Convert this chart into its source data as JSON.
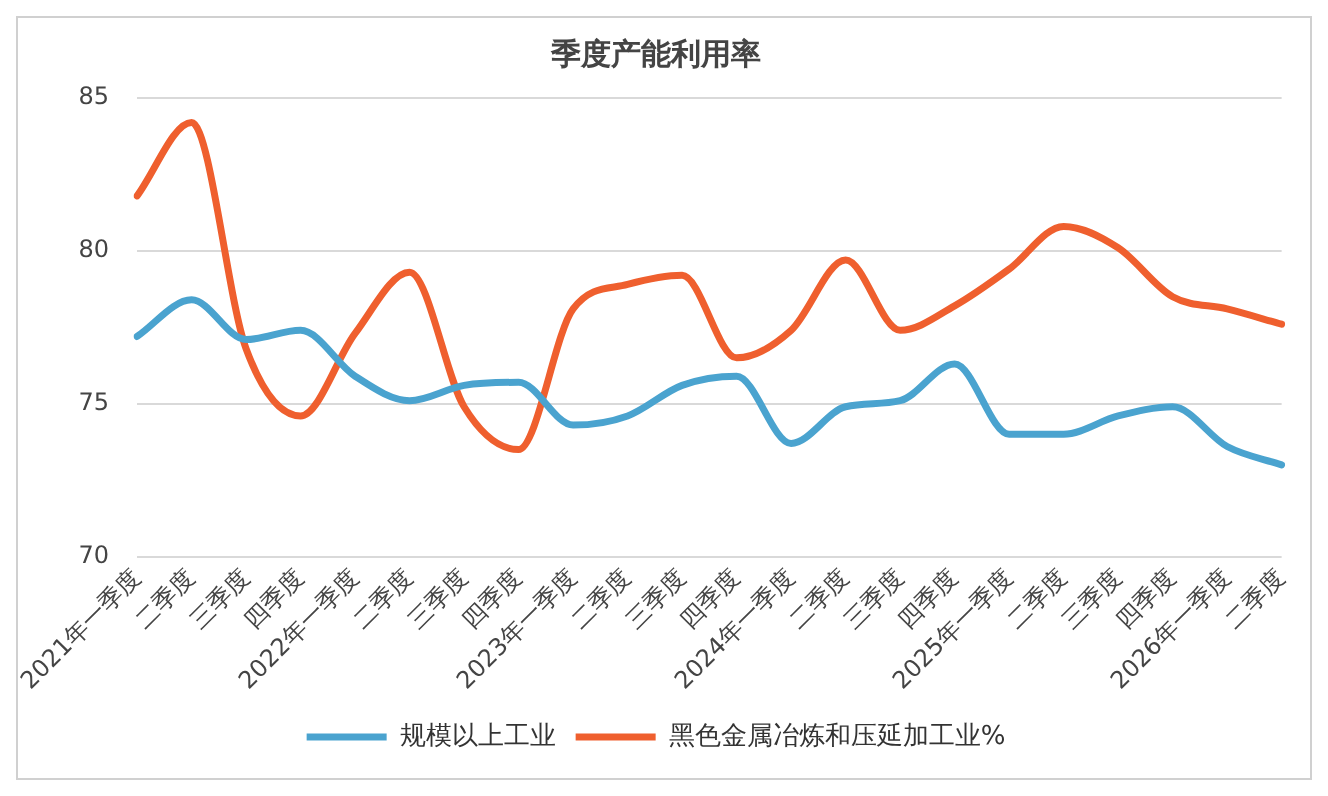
{
  "chart_data": {
    "type": "line",
    "title": "季度产能利用率",
    "categories": [
      "2021年一季度",
      "二季度",
      "三季度",
      "四季度",
      "2022年一季度",
      "二季度",
      "三季度",
      "四季度",
      "2023年一季度",
      "二季度",
      "三季度",
      "四季度",
      "2024年一季度",
      "二季度",
      "三季度",
      "四季度",
      "2025年一季度",
      "二季度",
      "三季度",
      "四季度",
      "2026年一季度",
      "二季度"
    ],
    "series": [
      {
        "name": "规模以上工业",
        "color": "#4aa3cf",
        "values": [
          77.2,
          78.4,
          77.1,
          77.4,
          75.9,
          75.1,
          75.6,
          75.7,
          74.3,
          74.6,
          75.6,
          75.9,
          73.7,
          74.9,
          75.1,
          76.3,
          74.0,
          74.0,
          74.6,
          74.9,
          73.6,
          73.0
        ]
      },
      {
        "name": "黑色金属冶炼和压延加工业%",
        "color": "#ef5f2e",
        "values": [
          81.8,
          84.2,
          76.8,
          74.6,
          77.3,
          79.3,
          74.9,
          73.5,
          78.1,
          78.9,
          79.2,
          76.5,
          77.4,
          79.7,
          77.4,
          78.2,
          79.4,
          80.8,
          80.1,
          78.5,
          78.1,
          77.6
        ]
      }
    ],
    "ylim": [
      70,
      85
    ],
    "yticks": [
      70,
      75,
      80,
      85
    ],
    "grid": "y",
    "legend": "bottom",
    "marker": "none",
    "line_style": "solid"
  }
}
